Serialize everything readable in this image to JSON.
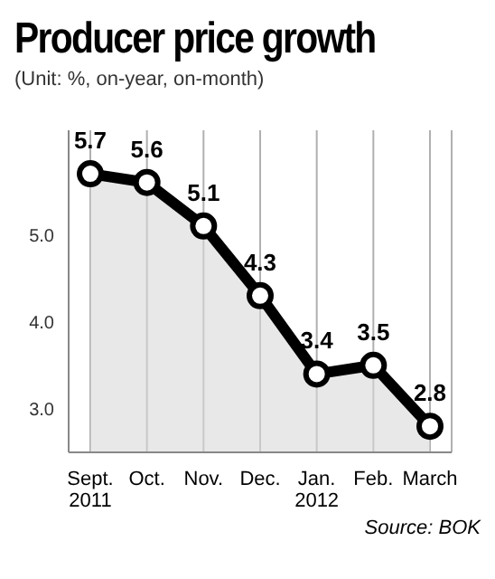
{
  "chart_data": {
    "type": "area",
    "title": "Producer price growth",
    "subtitle": "(Unit: %, on-year, on-month)",
    "categories": [
      "Sept.\n2011",
      "Oct.",
      "Nov.",
      "Dec.",
      "Jan.\n2012",
      "Feb.",
      "March"
    ],
    "values": [
      5.7,
      5.6,
      5.1,
      4.3,
      3.4,
      3.5,
      2.8
    ],
    "color": "#000000",
    "ylim": [
      2.5,
      6.2
    ],
    "yticks": [
      {
        "value": 3,
        "label": "3.0"
      },
      {
        "value": 4,
        "label": "4.0"
      },
      {
        "value": 5,
        "label": "5.0"
      }
    ],
    "grid": "x",
    "marker": "circle",
    "data_labels": true,
    "annotations": [
      "Source: BOK"
    ]
  }
}
